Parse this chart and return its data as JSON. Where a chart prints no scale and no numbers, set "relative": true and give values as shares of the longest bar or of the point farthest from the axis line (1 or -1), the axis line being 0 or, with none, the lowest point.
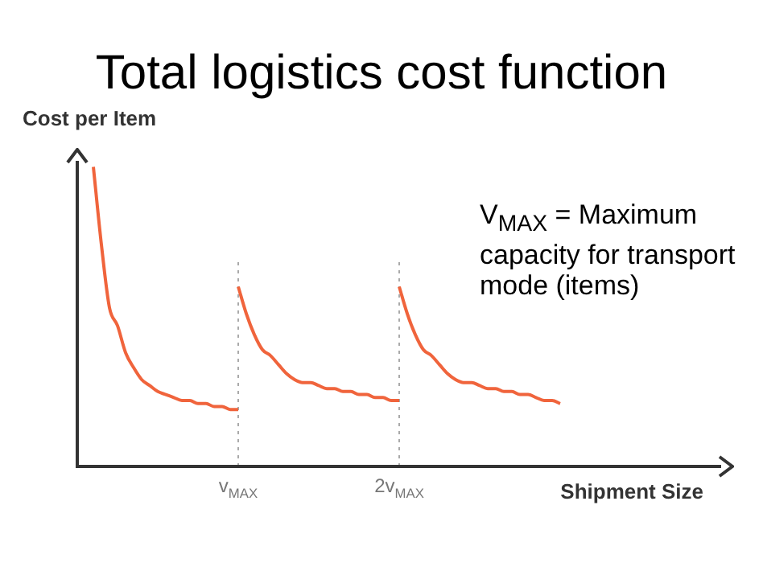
{
  "chart_data": {
    "type": "line",
    "title": "Total logistics cost function",
    "xlabel": "Shipment Size",
    "ylabel": "Cost per Item",
    "annotations": [
      "V$_{MAX}$ = Maximum capacity for transport mode (items)"
    ],
    "relative": true,
    "categories": [
      null,
      null,
      null,
      null,
      null,
      null,
      null,
      null,
      null,
      null,
      null,
      null,
      null,
      null,
      null,
      null,
      null,
      null,
      null,
      null,
      "v$_{MAX}$",
      null,
      null,
      null,
      null,
      null,
      null,
      null,
      null,
      null,
      null,
      null,
      null,
      null,
      null,
      null,
      null,
      null,
      null,
      null,
      "2v$_{MAX}$",
      null,
      null,
      null,
      null,
      null,
      null,
      null,
      null,
      null,
      null,
      null,
      null,
      null,
      null,
      null,
      null,
      null,
      null,
      null,
      null,
      null,
      null,
      null,
      null,
      null,
      null,
      null,
      null,
      null,
      null,
      null,
      null,
      null,
      null,
      null,
      null,
      null,
      null,
      null,
      null
    ],
    "series": [
      {
        "color": "#f0643c",
        "values": [
          null,
          null,
          1,
          0.74,
          0.53,
          0.47,
          0.38,
          0.33,
          0.29,
          0.27,
          0.25,
          0.24,
          0.23,
          0.22,
          0.22,
          0.21,
          0.21,
          0.2,
          0.2,
          0.19,
          0.19,
          null,
          null,
          null,
          null,
          null,
          null,
          null,
          null,
          null,
          null,
          null,
          null,
          null,
          null,
          null,
          null,
          null,
          null,
          null,
          null,
          null,
          null,
          null,
          null,
          null,
          null,
          null,
          null,
          null,
          null,
          null,
          null,
          null,
          null,
          null,
          null,
          null,
          null,
          null,
          null,
          null,
          null,
          null,
          null,
          null,
          null,
          null,
          null,
          null,
          null,
          null,
          null,
          null,
          null,
          null,
          null,
          null,
          null,
          null,
          null
        ]
      },
      {
        "color": "#f0643c",
        "values": [
          null,
          null,
          null,
          null,
          null,
          null,
          null,
          null,
          null,
          null,
          null,
          null,
          null,
          null,
          null,
          null,
          null,
          null,
          null,
          null,
          0.6,
          0.51,
          0.44,
          0.39,
          0.37,
          0.34,
          0.31,
          0.29,
          0.28,
          0.28,
          0.27,
          0.26,
          0.26,
          0.25,
          0.25,
          0.24,
          0.24,
          0.23,
          0.23,
          0.22,
          0.22,
          null,
          null,
          null,
          null,
          null,
          null,
          null,
          null,
          null,
          null,
          null,
          null,
          null,
          null,
          null,
          null,
          null,
          null,
          null,
          null,
          null,
          null,
          null,
          null,
          null,
          null,
          null,
          null,
          null,
          null,
          null,
          null,
          null,
          null,
          null,
          null,
          null,
          null,
          null,
          null
        ]
      },
      {
        "color": "#f0643c",
        "values": [
          null,
          null,
          null,
          null,
          null,
          null,
          null,
          null,
          null,
          null,
          null,
          null,
          null,
          null,
          null,
          null,
          null,
          null,
          null,
          null,
          null,
          null,
          null,
          null,
          null,
          null,
          null,
          null,
          null,
          null,
          null,
          null,
          null,
          null,
          null,
          null,
          null,
          null,
          null,
          null,
          0.6,
          0.51,
          0.44,
          0.39,
          0.37,
          0.34,
          0.31,
          0.29,
          0.28,
          0.28,
          0.27,
          0.26,
          0.26,
          0.25,
          0.25,
          0.24,
          0.24,
          0.23,
          0.22,
          0.22,
          0.21,
          null,
          null,
          null,
          null,
          null,
          null,
          null,
          null,
          null,
          null,
          null,
          null,
          null,
          null,
          null,
          null,
          null,
          null,
          null,
          null
        ]
      }
    ],
    "ref_lines": [
      {
        "axis": "x",
        "value": "v$_{MAX}$",
        "color": "#aaaaaa",
        "line_style": "dotted"
      },
      {
        "axis": "x",
        "value": "2v$_{MAX}$",
        "color": "#aaaaaa",
        "line_style": "dotted"
      }
    ],
    "legend": false,
    "marker": "none",
    "line_style": "solid"
  }
}
